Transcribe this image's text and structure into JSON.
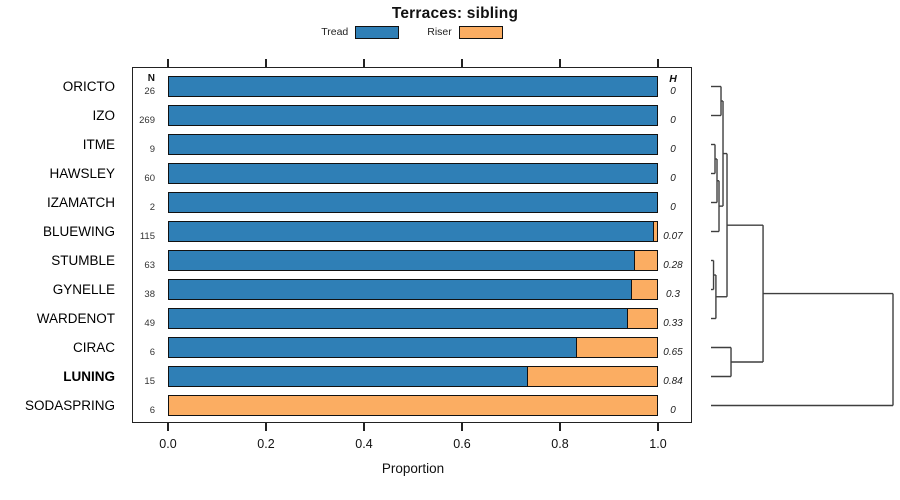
{
  "title": "Terraces: sibling",
  "legend": {
    "items": [
      {
        "label": "Tread",
        "color": "#2F7FB6"
      },
      {
        "label": "Riser",
        "color": "#FBAD62"
      }
    ]
  },
  "columns": {
    "n_header": "N",
    "h_header": "H"
  },
  "axis": {
    "label": "Proportion",
    "ticks": [
      "0.0",
      "0.2",
      "0.4",
      "0.6",
      "0.8",
      "1.0"
    ],
    "tick_values": [
      0,
      0.2,
      0.4,
      0.6,
      0.8,
      1.0
    ],
    "min": 0,
    "max": 1
  },
  "chart_data": {
    "type": "bar",
    "orientation": "horizontal-stacked",
    "title": "Terraces: sibling",
    "xlabel": "Proportion",
    "xlim": [
      0,
      1
    ],
    "series_names": [
      "Tread",
      "Riser"
    ],
    "colors": {
      "tread": "#2F7FB6",
      "riser": "#FBAD62",
      "bar_outline": "#111111",
      "dendrogram_line": "#3F3F3F"
    },
    "rows": [
      {
        "name": "ORICTO",
        "n": 26,
        "tread": 1.0,
        "riser": 0.0,
        "h": "0",
        "bold": false
      },
      {
        "name": "IZO",
        "n": 269,
        "tread": 1.0,
        "riser": 0.0,
        "h": "0",
        "bold": false
      },
      {
        "name": "ITME",
        "n": 9,
        "tread": 1.0,
        "riser": 0.0,
        "h": "0",
        "bold": false
      },
      {
        "name": "HAWSLEY",
        "n": 60,
        "tread": 1.0,
        "riser": 0.0,
        "h": "0",
        "bold": false
      },
      {
        "name": "IZAMATCH",
        "n": 2,
        "tread": 1.0,
        "riser": 0.0,
        "h": "0",
        "bold": false
      },
      {
        "name": "BLUEWING",
        "n": 115,
        "tread": 0.991,
        "riser": 0.009,
        "h": "0.07",
        "bold": false
      },
      {
        "name": "STUMBLE",
        "n": 63,
        "tread": 0.952,
        "riser": 0.048,
        "h": "0.28",
        "bold": false
      },
      {
        "name": "GYNELLE",
        "n": 38,
        "tread": 0.947,
        "riser": 0.053,
        "h": "0.3",
        "bold": false
      },
      {
        "name": "WARDENOT",
        "n": 49,
        "tread": 0.939,
        "riser": 0.061,
        "h": "0.33",
        "bold": false
      },
      {
        "name": "CIRAC",
        "n": 6,
        "tread": 0.833,
        "riser": 0.167,
        "h": "0.65",
        "bold": false
      },
      {
        "name": "LUNING",
        "n": 15,
        "tread": 0.733,
        "riser": 0.267,
        "h": "0.84",
        "bold": true
      },
      {
        "name": "SODASPRING",
        "n": 6,
        "tread": 0.0,
        "riser": 1.0,
        "h": "0",
        "bold": false
      }
    ],
    "dendrogram": {
      "h": 1.0,
      "children": [
        {
          "h": 0.286,
          "children": [
            {
              "h": 0.088,
              "children": [
                {
                  "h": 0.066,
                  "children": [
                    {
                      "h": 0.055,
                      "children": [
                        "ORICTO",
                        "IZO"
                      ]
                    },
                    {
                      "h": 0.044,
                      "children": [
                        {
                          "h": 0.033,
                          "children": [
                            {
                              "h": 0.022,
                              "children": [
                                "ITME",
                                "HAWSLEY"
                              ]
                            },
                            "IZAMATCH"
                          ]
                        },
                        "BLUEWING"
                      ]
                    }
                  ]
                },
                {
                  "h": 0.027,
                  "children": [
                    {
                      "h": 0.014,
                      "children": [
                        "STUMBLE",
                        "GYNELLE"
                      ]
                    },
                    "WARDENOT"
                  ]
                }
              ]
            },
            {
              "h": 0.11,
              "children": [
                "CIRAC",
                "LUNING"
              ]
            }
          ]
        },
        "SODASPRING"
      ]
    }
  }
}
